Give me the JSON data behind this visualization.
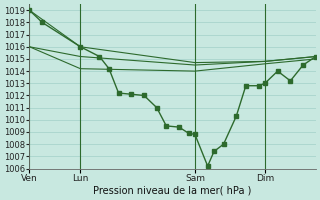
{
  "xlabel": "Pression niveau de la mer( hPa )",
  "ylim": [
    1006,
    1019.5
  ],
  "ytick_min": 1006,
  "ytick_max": 1019,
  "bg_color": "#c8e8e0",
  "grid_color": "#a8d4cc",
  "line_color": "#2d6a2d",
  "xtick_labels": [
    "Ven",
    "Lun",
    "Sam",
    "Dim"
  ],
  "xtick_positions": [
    0,
    16,
    52,
    74
  ],
  "xlim": [
    0,
    90
  ],
  "vlines_x": [
    0,
    16,
    52,
    74
  ],
  "main_x": [
    0,
    4,
    16,
    22,
    25,
    28,
    32,
    36,
    40,
    43,
    47,
    50,
    52,
    56,
    58,
    61,
    65,
    68,
    72,
    74,
    78,
    82,
    86,
    90
  ],
  "main_y": [
    1019,
    1018,
    1016,
    1015.2,
    1014.2,
    1012.2,
    1012.1,
    1012.0,
    1011.0,
    1009.5,
    1009.4,
    1008.9,
    1008.8,
    1006.2,
    1007.4,
    1008.0,
    1010.3,
    1012.8,
    1012.8,
    1013.0,
    1014.0,
    1013.2,
    1014.5,
    1015.2
  ],
  "trend1_x": [
    0,
    16,
    52,
    74,
    90
  ],
  "trend1_y": [
    1019,
    1016,
    1014.7,
    1014.8,
    1015.2
  ],
  "trend2_x": [
    0,
    16,
    52,
    74,
    90
  ],
  "trend2_y": [
    1016,
    1015.2,
    1014.5,
    1014.8,
    1015.2
  ],
  "trend3_x": [
    0,
    16,
    52,
    74,
    90
  ],
  "trend3_y": [
    1016,
    1014.2,
    1014.0,
    1014.6,
    1015.0
  ]
}
